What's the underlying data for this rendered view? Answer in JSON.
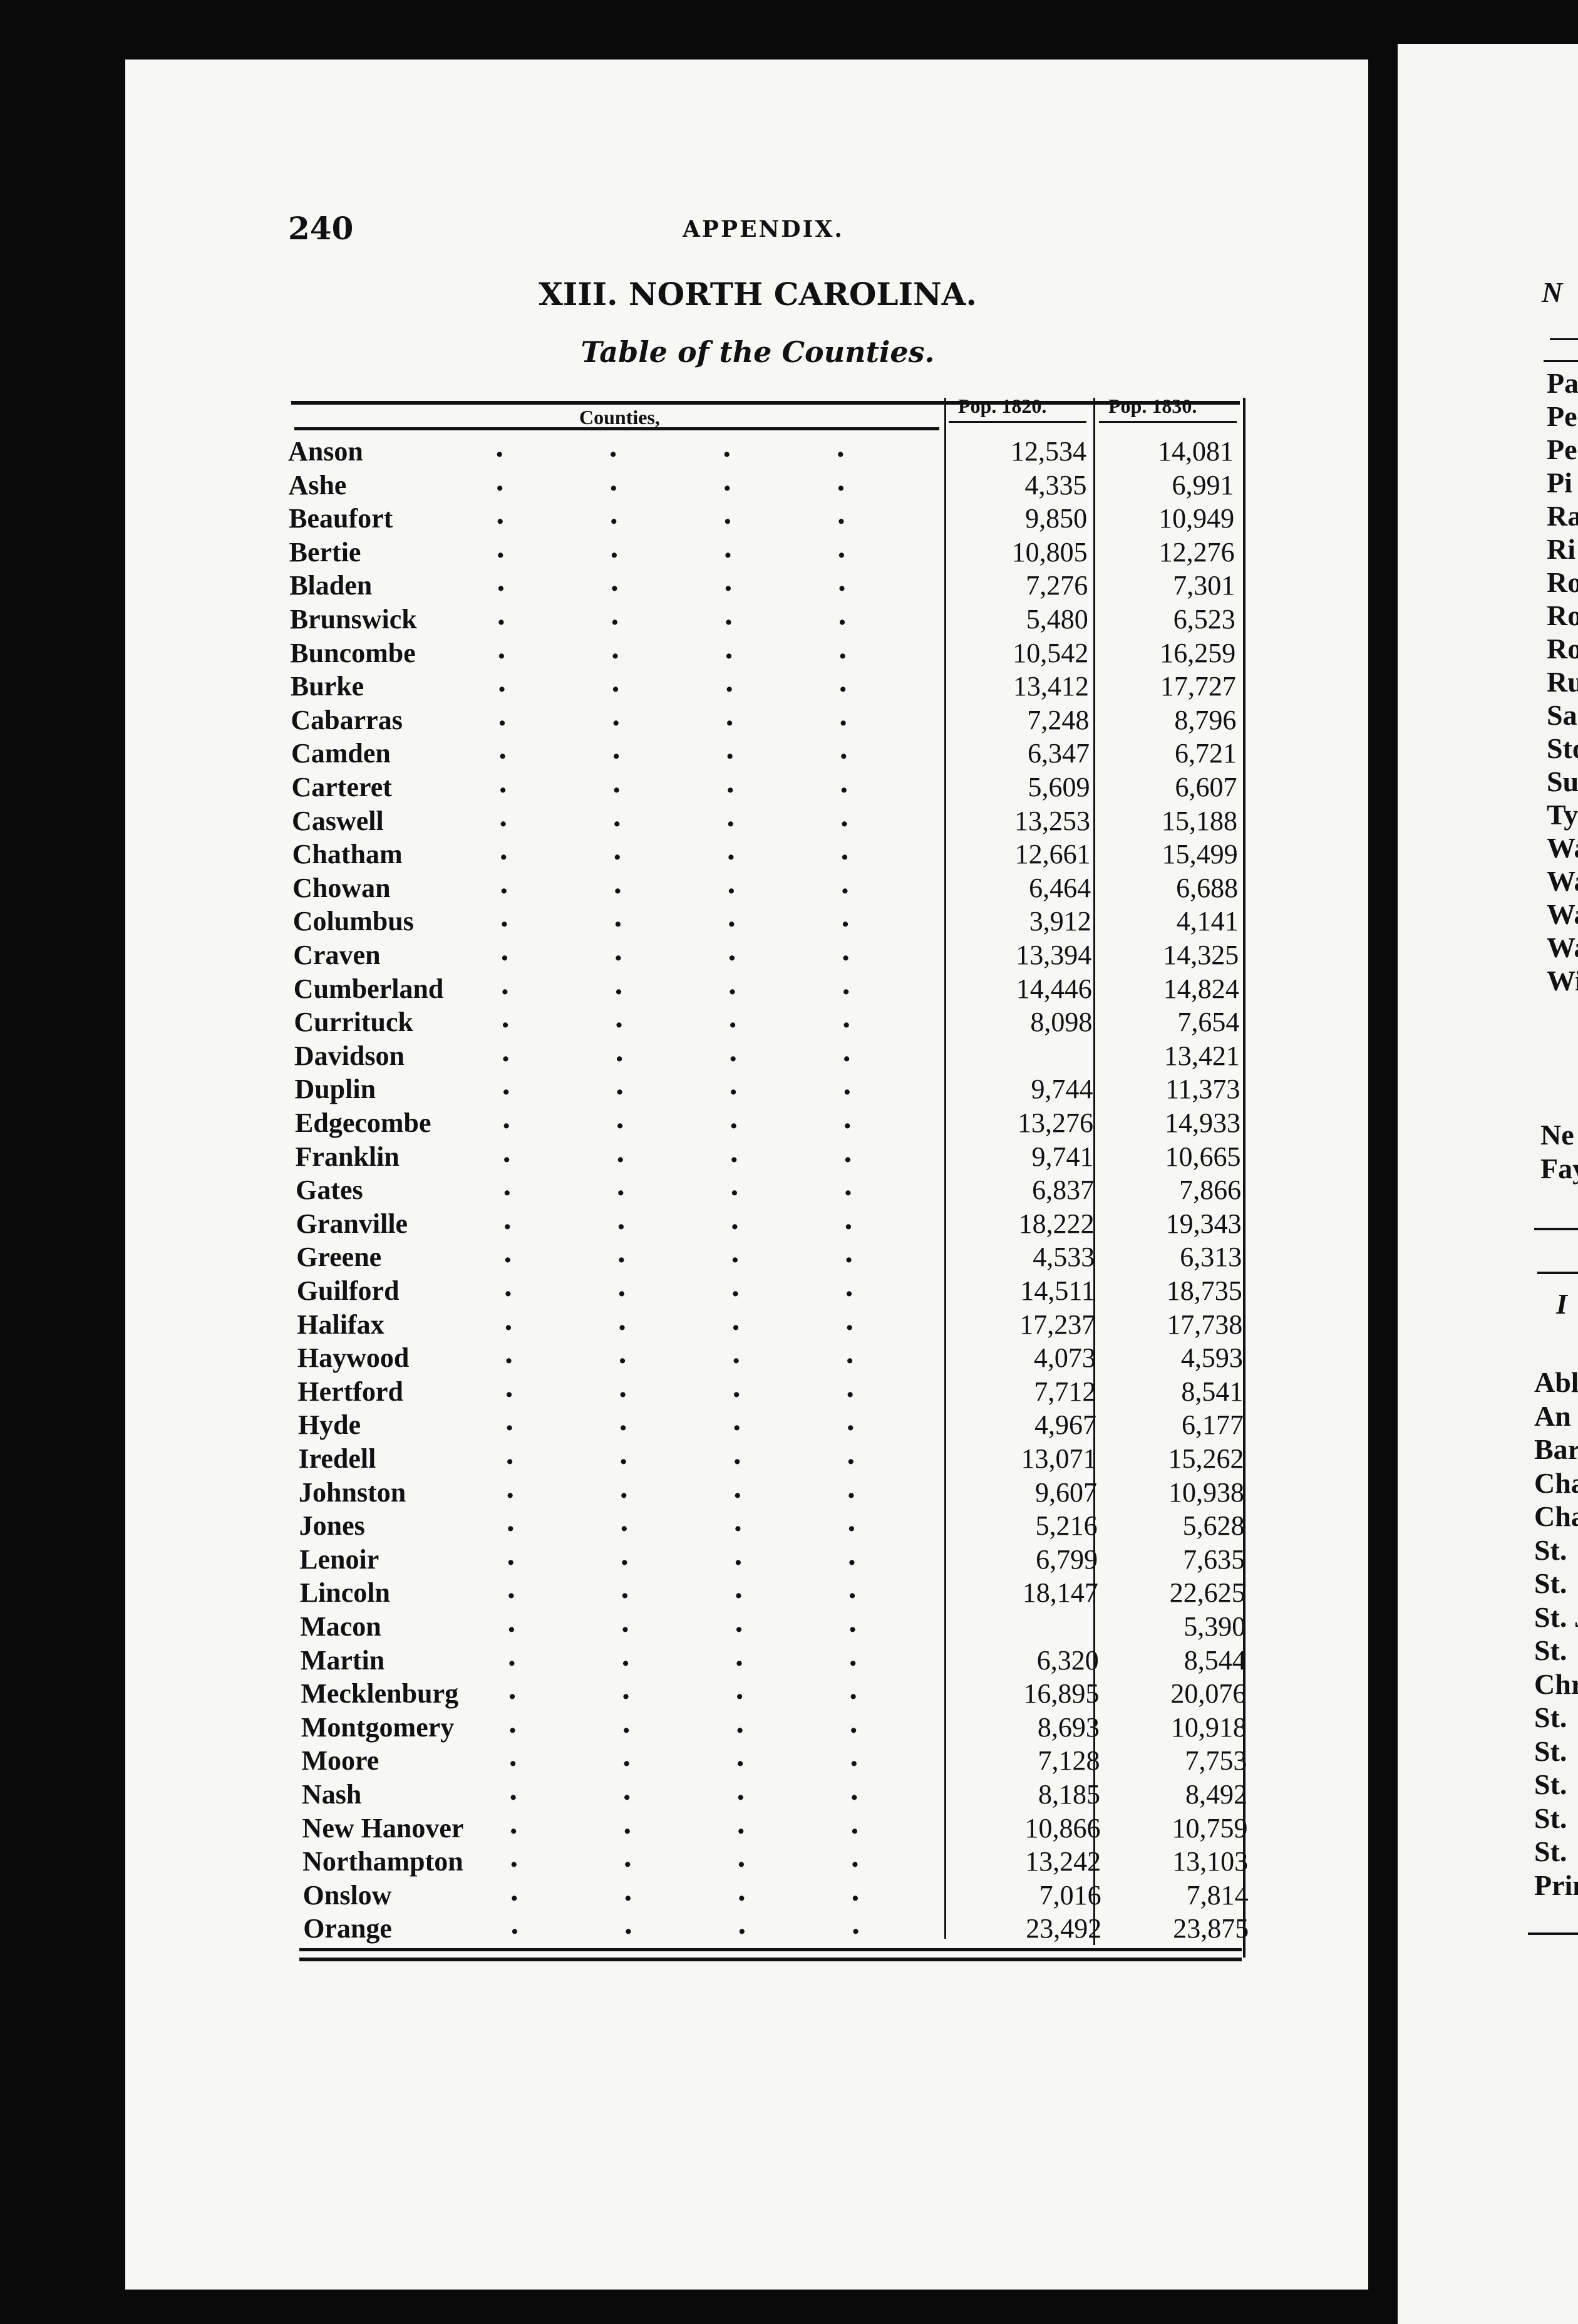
{
  "left_page": {
    "page_number": "240",
    "running_head": "APPENDIX.",
    "title": "XIII. NORTH CAROLINA.",
    "subtitle": "Table of the Counties.",
    "table": {
      "headers": [
        "Counties,",
        "Pop. 1820.",
        "Pop. 1830."
      ],
      "rows": [
        [
          "Anson",
          "12,534",
          "14,081"
        ],
        [
          "Ashe",
          "4,335",
          "6,991"
        ],
        [
          "Beaufort",
          "9,850",
          "10,949"
        ],
        [
          "Bertie",
          "10,805",
          "12,276"
        ],
        [
          "Bladen",
          "7,276",
          "7,301"
        ],
        [
          "Brunswick",
          "5,480",
          "6,523"
        ],
        [
          "Buncombe",
          "10,542",
          "16,259"
        ],
        [
          "Burke",
          "13,412",
          "17,727"
        ],
        [
          "Cabarras",
          "7,248",
          "8,796"
        ],
        [
          "Camden",
          "6,347",
          "6,721"
        ],
        [
          "Carteret",
          "5,609",
          "6,607"
        ],
        [
          "Caswell",
          "13,253",
          "15,188"
        ],
        [
          "Chatham",
          "12,661",
          "15,499"
        ],
        [
          "Chowan",
          "6,464",
          "6,688"
        ],
        [
          "Columbus",
          "3,912",
          "4,141"
        ],
        [
          "Craven",
          "13,394",
          "14,325"
        ],
        [
          "Cumberland",
          "14,446",
          "14,824"
        ],
        [
          "Currituck",
          "8,098",
          "7,654"
        ],
        [
          "Davidson",
          "",
          "13,421"
        ],
        [
          "Duplin",
          "9,744",
          "11,373"
        ],
        [
          "Edgecombe",
          "13,276",
          "14,933"
        ],
        [
          "Franklin",
          "9,741",
          "10,665"
        ],
        [
          "Gates",
          "6,837",
          "7,866"
        ],
        [
          "Granville",
          "18,222",
          "19,343"
        ],
        [
          "Greene",
          "4,533",
          "6,313"
        ],
        [
          "Guilford",
          "14,511",
          "18,735"
        ],
        [
          "Halifax",
          "17,237",
          "17,738"
        ],
        [
          "Haywood",
          "4,073",
          "4,593"
        ],
        [
          "Hertford",
          "7,712",
          "8,541"
        ],
        [
          "Hyde",
          "4,967",
          "6,177"
        ],
        [
          "Iredell",
          "13,071",
          "15,262"
        ],
        [
          "Johnston",
          "9,607",
          "10,938"
        ],
        [
          "Jones",
          "5,216",
          "5,628"
        ],
        [
          "Lenoir",
          "6,799",
          "7,635"
        ],
        [
          "Lincoln",
          "18,147",
          "22,625"
        ],
        [
          "Macon",
          "",
          "5,390"
        ],
        [
          "Martin",
          "6,320",
          "8,544"
        ],
        [
          "Mecklenburg",
          "16,895",
          "20,076"
        ],
        [
          "Montgomery",
          "8,693",
          "10,918"
        ],
        [
          "Moore",
          "7,128",
          "7,753"
        ],
        [
          "Nash",
          "8,185",
          "8,492"
        ],
        [
          "New Hanover",
          "10,866",
          "10,759"
        ],
        [
          "Northampton",
          "13,242",
          "13,103"
        ],
        [
          "Onslow",
          "7,016",
          "7,814"
        ],
        [
          "Orange",
          "23,492",
          "23,875"
        ]
      ]
    }
  },
  "right_page": {
    "heading_fragment": "N",
    "list1": [
      "Pa",
      "Pe",
      "Pe",
      "Pi",
      "Ra",
      "Ri",
      "Ro",
      "Ro",
      "Ro",
      "Ru",
      "Sa",
      "Sto",
      "Su",
      "Ty",
      "Wa",
      "Wa",
      "Wa",
      "Wa",
      "Wi"
    ],
    "list2": [
      "Ne",
      "Fay"
    ],
    "heading2_fragment": "I",
    "list3": [
      "Abl",
      "An",
      "Bar",
      "Cha",
      "Cha",
      "St.",
      "St.",
      "St. J",
      "St.",
      "Chr",
      "St.",
      "St.",
      "St.",
      "St.",
      "St.",
      "Prin"
    ]
  }
}
